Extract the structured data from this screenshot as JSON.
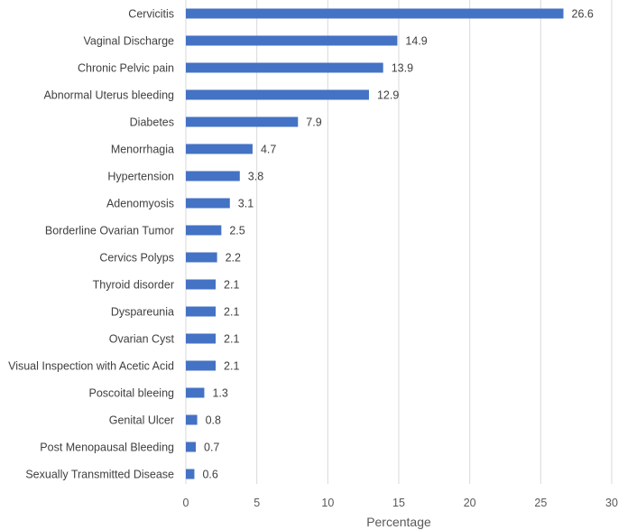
{
  "chart_data": {
    "type": "bar",
    "orientation": "horizontal",
    "categories": [
      "Cervicitis",
      "Vaginal Discharge",
      "Chronic Pelvic pain",
      "Abnormal Uterus bleeding",
      "Diabetes",
      "Menorrhagia",
      "Hypertension",
      "Adenomyosis",
      "Borderline Ovarian Tumor",
      "Cervics Polyps",
      "Thyroid disorder",
      "Dyspareunia",
      "Ovarian Cyst",
      "Visual Inspection with Acetic Acid",
      "Poscoital bleeing",
      "Genital Ulcer",
      "Post Menopausal Bleeding",
      "Sexually Transmitted Disease"
    ],
    "values": [
      26.6,
      14.9,
      13.9,
      12.9,
      7.9,
      4.7,
      3.8,
      3.1,
      2.5,
      2.2,
      2.1,
      2.1,
      2.1,
      2.1,
      1.3,
      0.8,
      0.7,
      0.6
    ],
    "value_labels": [
      "26.6",
      "14.9",
      "13.9",
      "12.9",
      "7.9",
      "4.7",
      "3.8",
      "3.1",
      "2.5",
      "2.2",
      "2.1",
      "2.1",
      "2.1",
      "2.1",
      "1.3",
      "0.8",
      "0.7",
      "0.6"
    ],
    "title": "",
    "xlabel": "Percentage",
    "ylabel": "",
    "xlim": [
      0,
      30
    ],
    "xticks": [
      0,
      5,
      10,
      15,
      20,
      25,
      30
    ],
    "xtick_labels": [
      "0",
      "5",
      "10",
      "15",
      "20",
      "25",
      "30"
    ],
    "grid": "vertical",
    "bar_color": "#4472C4",
    "grid_color": "#d9d9d9",
    "text_color": "#404040"
  }
}
